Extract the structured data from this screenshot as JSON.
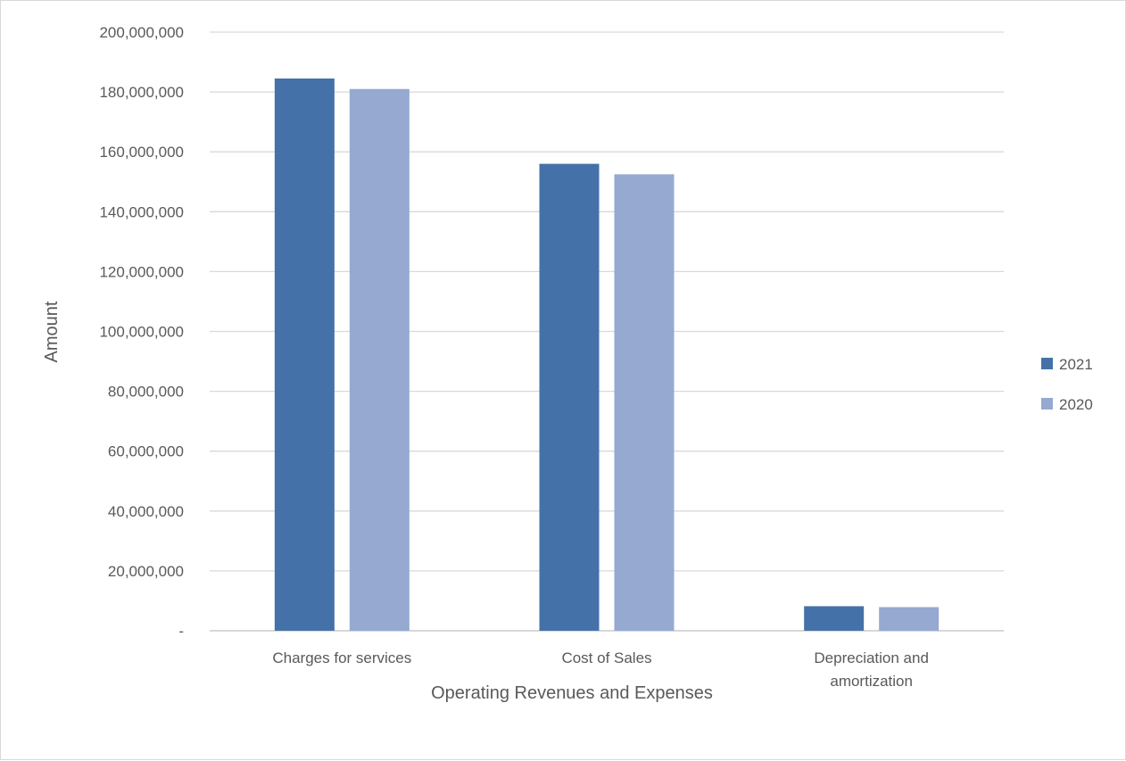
{
  "chart_data": {
    "type": "bar",
    "title": "",
    "xlabel": "Operating Revenues and Expenses",
    "ylabel": "Amount",
    "ylim": [
      0,
      200000000
    ],
    "yticks": [
      "-",
      "20,000,000",
      "40,000,000",
      "60,000,000",
      "80,000,000",
      "100,000,000",
      "120,000,000",
      "140,000,000",
      "160,000,000",
      "180,000,000",
      "200,000,000"
    ],
    "categories": [
      [
        "Charges for services"
      ],
      [
        "Cost of Sales"
      ],
      [
        "Depreciation and",
        "amortization"
      ]
    ],
    "series": [
      {
        "name": "2021",
        "color": "#4472a8",
        "values": [
          184500000,
          156000000,
          8200000
        ]
      },
      {
        "name": "2020",
        "color": "#95a9d1",
        "values": [
          181000000,
          152500000,
          7900000
        ]
      }
    ],
    "grid": true,
    "legend": "right"
  }
}
